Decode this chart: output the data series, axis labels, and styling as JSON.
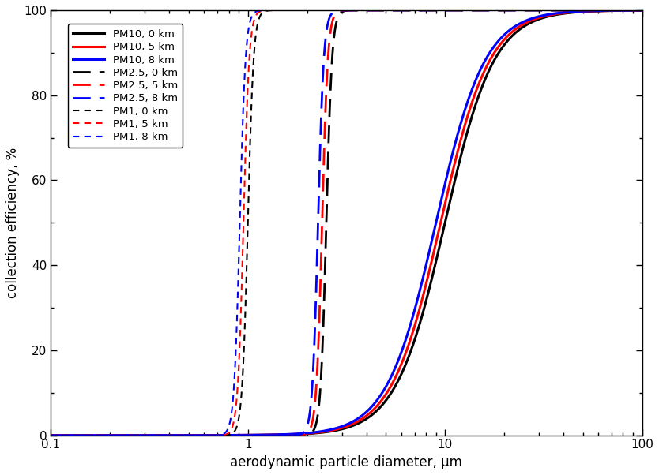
{
  "title": "",
  "xlabel": "aerodynamic particle diameter, μm",
  "ylabel": "collection efficiency, %",
  "xlim": [
    0.1,
    100
  ],
  "ylim": [
    0,
    100
  ],
  "background_color": "#ffffff",
  "legend_entries": [
    {
      "label": "PM10, 0 km",
      "color": "#000000",
      "linestyle": "solid",
      "linewidth": 2.2
    },
    {
      "label": "PM10, 5 km",
      "color": "#ff0000",
      "linestyle": "solid",
      "linewidth": 2.2
    },
    {
      "label": "PM10, 8 km",
      "color": "#0000ff",
      "linestyle": "solid",
      "linewidth": 2.2
    },
    {
      "label": "PM2.5, 0 km",
      "color": "#000000",
      "linestyle": "dashed",
      "linewidth": 2.0
    },
    {
      "label": "PM2.5, 5 km",
      "color": "#ff0000",
      "linestyle": "dashed",
      "linewidth": 2.0
    },
    {
      "label": "PM2.5, 8 km",
      "color": "#0000ff",
      "linestyle": "dashed",
      "linewidth": 2.0
    },
    {
      "label": "PM1, 0 km",
      "color": "#000000",
      "linestyle": "dashed",
      "linewidth": 1.5
    },
    {
      "label": "PM1, 5 km",
      "color": "#ff0000",
      "linestyle": "dashed",
      "linewidth": 1.5
    },
    {
      "label": "PM1, 8 km",
      "color": "#0000ff",
      "linestyle": "dashed",
      "linewidth": 1.5
    }
  ],
  "pm10_d50": {
    "0km": 10.0,
    "5km": 9.5,
    "8km": 9.0
  },
  "pm25_d50": {
    "0km": 2.5,
    "5km": 2.38,
    "8km": 2.27
  },
  "pm1_d50": {
    "0km": 1.0,
    "5km": 0.95,
    "8km": 0.91
  },
  "sharpness_pm10": 3.5,
  "sharpness_pm25": 30.0,
  "sharpness_pm1": 30.0,
  "pm10_lw": 2.2,
  "pm25_lw": 2.0,
  "pm1_lw": 1.5,
  "pm25_dashes": [
    8,
    4
  ],
  "pm1_dashes": [
    4,
    3
  ]
}
